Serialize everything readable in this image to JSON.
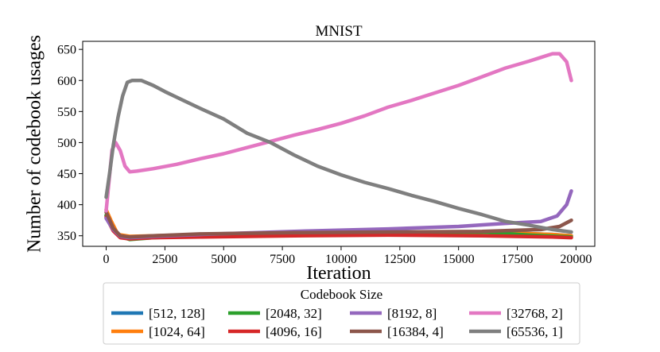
{
  "chart_data": {
    "type": "line",
    "title": "MNIST",
    "xlabel": "Iteration",
    "ylabel": "Number of codebook usages",
    "xlim": [
      -1000,
      20800
    ],
    "ylim": [
      333,
      663
    ],
    "xticks": [
      0,
      2500,
      5000,
      7500,
      10000,
      12500,
      15000,
      17500,
      20000
    ],
    "yticks": [
      350,
      400,
      450,
      500,
      550,
      600,
      650
    ],
    "grid": false,
    "legend": {
      "title": "Codebook Size",
      "placement": "bottom-center",
      "columns": 4
    },
    "series": [
      {
        "name": "[512, 128]",
        "color": "#1f77b4",
        "x": [
          0,
          300,
          600,
          1000,
          2000,
          4000,
          8000,
          12000,
          16000,
          19000,
          19800
        ],
        "y": [
          382,
          362,
          350,
          346,
          348,
          350,
          354,
          356,
          356,
          352,
          350
        ]
      },
      {
        "name": "[1024, 64]",
        "color": "#ff7f0e",
        "x": [
          0,
          200,
          500,
          1000,
          2000,
          4000,
          8000,
          12000,
          16000,
          19000,
          19800
        ],
        "y": [
          392,
          375,
          352,
          349,
          350,
          352,
          354,
          355,
          356,
          352,
          350
        ]
      },
      {
        "name": "[2048, 32]",
        "color": "#2ca02c",
        "x": [
          0,
          300,
          600,
          1000,
          2000,
          4000,
          8000,
          12000,
          16000,
          18000,
          19800
        ],
        "y": [
          383,
          360,
          349,
          344,
          347,
          350,
          353,
          355,
          356,
          351,
          348
        ]
      },
      {
        "name": "[4096, 16]",
        "color": "#d62728",
        "x": [
          0,
          300,
          600,
          1000,
          2000,
          4000,
          8000,
          12000,
          16000,
          19000,
          19800
        ],
        "y": [
          380,
          358,
          347,
          345,
          347,
          348,
          350,
          351,
          350,
          348,
          347
        ]
      },
      {
        "name": "[8192, 8]",
        "color": "#9467bd",
        "x": [
          0,
          300,
          600,
          1000,
          2000,
          4000,
          8000,
          12000,
          15000,
          17000,
          18500,
          19200,
          19600,
          19800
        ],
        "y": [
          378,
          360,
          349,
          347,
          349,
          352,
          357,
          361,
          365,
          370,
          373,
          382,
          400,
          422
        ]
      },
      {
        "name": "[16384, 4]",
        "color": "#8c564b",
        "x": [
          0,
          300,
          600,
          1000,
          2000,
          4000,
          8000,
          12000,
          16000,
          18500,
          19300,
          19800
        ],
        "y": [
          388,
          362,
          350,
          348,
          350,
          353,
          355,
          356,
          357,
          360,
          365,
          375
        ]
      },
      {
        "name": "[32768, 2]",
        "color": "#e377c2",
        "x": [
          0,
          100,
          250,
          400,
          600,
          800,
          1000,
          1300,
          2000,
          3000,
          4000,
          5000,
          6000,
          7000,
          8000,
          9000,
          10000,
          11000,
          12000,
          13000,
          14000,
          15000,
          16000,
          17000,
          18000,
          18500,
          19000,
          19300,
          19600,
          19800
        ],
        "y": [
          390,
          430,
          488,
          500,
          487,
          462,
          453,
          454,
          458,
          465,
          474,
          482,
          492,
          502,
          512,
          521,
          531,
          543,
          557,
          568,
          580,
          592,
          606,
          620,
          631,
          637,
          643,
          643,
          630,
          600
        ]
      },
      {
        "name": "[65536, 1]",
        "color": "#7f7f7f",
        "x": [
          0,
          150,
          300,
          500,
          700,
          900,
          1100,
          1500,
          2000,
          2500,
          3000,
          4000,
          5000,
          6000,
          7000,
          8000,
          9000,
          10000,
          11000,
          12000,
          13000,
          14000,
          15000,
          16000,
          17000,
          18000,
          19000,
          19800
        ],
        "y": [
          412,
          452,
          495,
          540,
          575,
          597,
          600,
          600,
          592,
          582,
          573,
          555,
          538,
          515,
          500,
          480,
          462,
          448,
          436,
          426,
          415,
          405,
          394,
          384,
          373,
          367,
          360,
          356
        ]
      }
    ]
  }
}
